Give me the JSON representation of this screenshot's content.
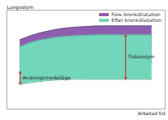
{
  "chart_data": {
    "type": "area",
    "x_label": "Arbetad tid",
    "y_label": "Lungvolym",
    "xlim": [
      -1,
      11
    ],
    "ylim": [
      0,
      10
    ],
    "tick_labels": false,
    "grid": false,
    "legend": "top-right",
    "x": [
      0,
      1,
      2,
      3,
      4,
      5,
      6,
      7,
      8,
      9,
      10
    ],
    "series": [
      {
        "name": "Före bronkdilatation",
        "color": "#8e5fae",
        "values": [
          7.0,
          7.5,
          7.85,
          8.1,
          8.25,
          8.35,
          8.4,
          8.4,
          8.4,
          8.4,
          8.4
        ],
        "low": [
          3.8,
          4.1,
          4.35,
          4.5,
          4.6,
          4.65,
          4.7,
          4.7,
          4.7,
          4.7,
          4.7
        ]
      },
      {
        "name": "Efter bronkdilatation",
        "color": "#72d6bb",
        "values": [
          6.3,
          6.8,
          7.1,
          7.3,
          7.4,
          7.45,
          7.5,
          7.5,
          7.5,
          7.5,
          7.5
        ],
        "low": [
          2.5,
          2.7,
          2.85,
          2.95,
          3.0,
          3.0,
          3.0,
          3.0,
          3.0,
          3.0,
          3.0
        ]
      }
    ],
    "annotations": [
      {
        "text": "Andningsmedelläge",
        "x": 0,
        "y1": 2.5,
        "y2": 3.8,
        "side": "right"
      },
      {
        "text": "Tidalvolym",
        "x": 8,
        "y1": 3.0,
        "y2": 7.5,
        "side": "right"
      }
    ]
  }
}
